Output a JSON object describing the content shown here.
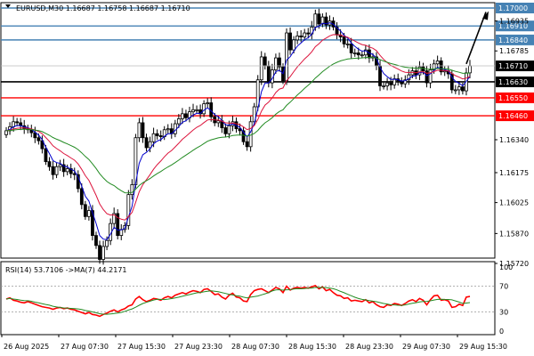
{
  "header": {
    "symbol_tf": "EURUSD,M30",
    "ohlc": "1.16687 1.16758 1.16687 1.16710"
  },
  "colors": {
    "background": "#ffffff",
    "candle": "#000000",
    "ma_fast": "#0000cd",
    "ma_mid": "#dc143c",
    "ma_slow": "#228b22",
    "level_blue": "#4682b4",
    "level_red": "#ff0000",
    "level_black": "#000000",
    "rsi": "#ff0000",
    "rsi_ma": "#228b22",
    "current_price_badge": "#000000"
  },
  "chart_data": [
    {
      "type": "candlestick",
      "symbol": "EURUSD",
      "timeframe": "M30",
      "ylim": [
        1.1572,
        1.17
      ],
      "price_ticks": [
        "1.16935",
        "1.16785",
        "1.16340",
        "1.16175",
        "1.16025",
        "1.15870",
        "1.15720"
      ],
      "time_labels": [
        "26 Aug 2025",
        "27 Aug 07:30",
        "27 Aug 15:30",
        "27 Aug 23:30",
        "28 Aug 07:30",
        "28 Aug 15:30",
        "28 Aug 23:30",
        "29 Aug 07:30",
        "29 Aug 15:30"
      ],
      "levels": [
        {
          "price": 1.17,
          "label": "1.17000",
          "color": "#4682b4"
        },
        {
          "price": 1.1691,
          "label": "1.16910",
          "color": "#4682b4"
        },
        {
          "price": 1.1684,
          "label": "1.16840",
          "color": "#4682b4"
        },
        {
          "price": 1.1663,
          "label": "1.16630",
          "color": "#000000"
        },
        {
          "price": 1.1655,
          "label": "1.16550",
          "color": "#ff0000"
        },
        {
          "price": 1.1646,
          "label": "1.16460",
          "color": "#ff0000"
        }
      ],
      "current_price": {
        "price": 1.1671,
        "label": "1.16710"
      },
      "arrow": {
        "from": [
          128,
          1.1672
        ],
        "to": [
          133,
          1.1698
        ]
      },
      "close": [
        1.16385,
        1.16405,
        1.1643,
        1.16425,
        1.1641,
        1.16395,
        1.1639,
        1.16375,
        1.1635,
        1.16335,
        1.16295,
        1.1623,
        1.16205,
        1.16165,
        1.16205,
        1.16215,
        1.1618,
        1.16195,
        1.1617,
        1.16165,
        1.16095,
        1.16015,
        1.15955,
        1.15985,
        1.1586,
        1.1581,
        1.1574,
        1.15805,
        1.15835,
        1.1592,
        1.1597,
        1.1586,
        1.1589,
        1.1591,
        1.16065,
        1.16115,
        1.1635,
        1.16425,
        1.1635,
        1.163,
        1.1633,
        1.1637,
        1.1636,
        1.16355,
        1.1639,
        1.16395,
        1.1637,
        1.1642,
        1.16445,
        1.1647,
        1.1645,
        1.1648,
        1.1649,
        1.1649,
        1.1647,
        1.1652,
        1.16525,
        1.16455,
        1.16425,
        1.16435,
        1.164,
        1.1637,
        1.1641,
        1.1643,
        1.16395,
        1.16385,
        1.1633,
        1.16305,
        1.1643,
        1.16505,
        1.1664,
        1.16755,
        1.1671,
        1.16625,
        1.1669,
        1.1675,
        1.16705,
        1.16635,
        1.16875,
        1.1679,
        1.1684,
        1.1686,
        1.16855,
        1.16875,
        1.1687,
        1.16905,
        1.1697,
        1.1692,
        1.16955,
        1.16915,
        1.16935,
        1.16905,
        1.16865,
        1.16855,
        1.1682,
        1.1682,
        1.16775,
        1.16775,
        1.16765,
        1.16765,
        1.1679,
        1.1675,
        1.16755,
        1.1671,
        1.1661,
        1.1661,
        1.16625,
        1.16615,
        1.16645,
        1.16635,
        1.1662,
        1.1664,
        1.16665,
        1.16685,
        1.16665,
        1.16705,
        1.16685,
        1.16625,
        1.1669,
        1.1672,
        1.16735,
        1.1668,
        1.16685,
        1.1667,
        1.1659,
        1.1659,
        1.16605,
        1.16585,
        1.16675,
        1.1671
      ],
      "ma_fast_end": 1.1664,
      "ma_mid_end": 1.16665,
      "ma_slow_end": 1.16645
    },
    {
      "type": "line",
      "title": "RSI(14) 53.7106 ->MA(7) 44.2171",
      "ylim": [
        0,
        100
      ],
      "ticks": [
        "100",
        "70",
        "30",
        "0"
      ],
      "levels": [
        70,
        30
      ],
      "rsi": [
        50,
        52,
        48,
        47,
        45,
        44,
        46,
        44,
        42,
        40,
        38,
        37,
        36,
        34,
        36,
        37,
        35,
        36,
        34,
        33,
        31,
        29,
        27,
        29,
        26,
        25,
        23,
        26,
        28,
        31,
        33,
        30,
        33,
        35,
        39,
        41,
        50,
        54,
        49,
        46,
        48,
        51,
        50,
        48,
        52,
        54,
        52,
        56,
        58,
        60,
        58,
        61,
        63,
        62,
        60,
        65,
        66,
        62,
        57,
        58,
        53,
        50,
        56,
        59,
        53,
        52,
        47,
        46,
        57,
        63,
        65,
        66,
        63,
        60,
        64,
        68,
        66,
        60,
        70,
        64,
        67,
        68,
        67,
        68,
        67,
        69,
        71,
        66,
        69,
        63,
        65,
        60,
        56,
        55,
        51,
        52,
        47,
        48,
        47,
        46,
        49,
        44,
        46,
        41,
        38,
        37,
        41,
        40,
        43,
        42,
        40,
        43,
        47,
        49,
        46,
        51,
        48,
        41,
        49,
        55,
        56,
        48,
        49,
        47,
        37,
        38,
        42,
        40,
        53,
        54
      ]
    }
  ]
}
